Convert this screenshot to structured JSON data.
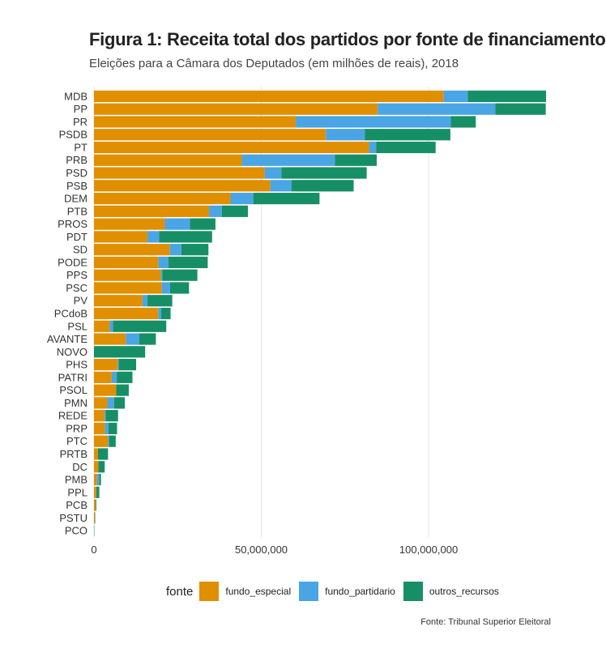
{
  "chart_data": {
    "type": "bar",
    "orientation": "horizontal",
    "stacked": true,
    "title": "Figura 1: Receita total dos partidos por fonte de financiamento",
    "subtitle": "Eleições para a Câmara dos Deputados (em milhões de reais), 2018",
    "caption": "Fonte: Tribunal Superior Eleitoral",
    "legend_title": "fonte",
    "legend_position": "bottom",
    "grid": true,
    "xlim": [
      0,
      138000000
    ],
    "x_ticks": [
      0,
      50000000,
      100000000
    ],
    "x_tick_labels": [
      "0",
      "50,000,000",
      "100,000,000"
    ],
    "categories": [
      "MDB",
      "PP",
      "PR",
      "PSDB",
      "PT",
      "PRB",
      "PSD",
      "PSB",
      "DEM",
      "PTB",
      "PROS",
      "PDT",
      "SD",
      "PODE",
      "PPS",
      "PSC",
      "PV",
      "PCdoB",
      "PSL",
      "AVANTE",
      "NOVO",
      "PHS",
      "PATRI",
      "PSOL",
      "PMN",
      "REDE",
      "PRP",
      "PTC",
      "PRTB",
      "DC",
      "PMB",
      "PPL",
      "PCB",
      "PSTU",
      "PCO"
    ],
    "series": [
      {
        "name": "fundo_especial",
        "color": "#E08F00",
        "values": [
          104500000,
          84800000,
          60300000,
          69300000,
          82200000,
          44200000,
          51000000,
          52700000,
          40800000,
          34400000,
          21200000,
          16000000,
          22700000,
          19200000,
          20000000,
          20300000,
          14500000,
          19200000,
          4700000,
          9500000,
          0,
          7100000,
          5300000,
          6600000,
          4000000,
          3200000,
          3300000,
          4200000,
          1200000,
          1300000,
          900000,
          700000,
          500000,
          300000,
          0
        ]
      },
      {
        "name": "fundo_partidario",
        "color": "#4AA5E4",
        "values": [
          7200000,
          35100000,
          46300000,
          11600000,
          2100000,
          27800000,
          5000000,
          6300000,
          6800000,
          3800000,
          7500000,
          3500000,
          3400000,
          3000000,
          400000,
          2400000,
          1500000,
          900000,
          1000000,
          4000000,
          0,
          300000,
          1500000,
          0,
          2000000,
          300000,
          1000000,
          300000,
          0,
          0,
          700000,
          0,
          0,
          0,
          0
        ]
      },
      {
        "name": "outros_recursos",
        "color": "#178F66",
        "values": [
          23400000,
          15100000,
          7500000,
          25600000,
          17800000,
          12500000,
          25500000,
          18600000,
          19800000,
          7800000,
          7600000,
          15800000,
          8100000,
          11800000,
          10500000,
          5700000,
          7400000,
          2800000,
          15900000,
          5000000,
          15300000,
          5200000,
          4700000,
          3800000,
          3200000,
          3700000,
          2600000,
          2000000,
          3000000,
          1900000,
          500000,
          900000,
          200000,
          100000,
          100000
        ]
      }
    ]
  }
}
